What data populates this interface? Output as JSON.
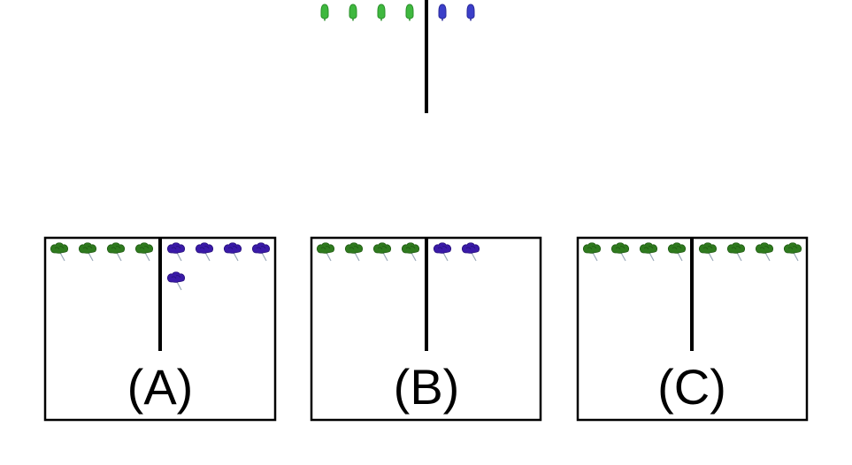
{
  "colors": {
    "green_item": "#3fb83f",
    "green_item_dark": "#2a8f2a",
    "blue_item": "#3b3fc9",
    "blue_item_dark": "#2a2a9a",
    "green_flower": "#2f7a1e",
    "green_flower_dark": "#1f5a12",
    "purple_flower": "#3a1aa8",
    "purple_flower_dark": "#26107a",
    "stem": "#9aa9b8",
    "line": "#000000",
    "frame": "#000000"
  },
  "question": {
    "left_items": {
      "icon": "green-bulb-icon",
      "count": 4
    },
    "right_items": {
      "icon": "blue-bulb-icon",
      "count": 2
    }
  },
  "options": [
    {
      "label": "(A)",
      "left": {
        "icon": "green-flower-icon",
        "count": 4
      },
      "right": {
        "icon": "purple-flower-icon",
        "count": 5
      }
    },
    {
      "label": "(B)",
      "left": {
        "icon": "green-flower-icon",
        "count": 4
      },
      "right": {
        "icon": "purple-flower-icon",
        "count": 2
      }
    },
    {
      "label": "(C)",
      "left": {
        "icon": "green-flower-icon",
        "count": 4
      },
      "right": {
        "icon": "green-flower-icon",
        "count": 4
      }
    }
  ]
}
